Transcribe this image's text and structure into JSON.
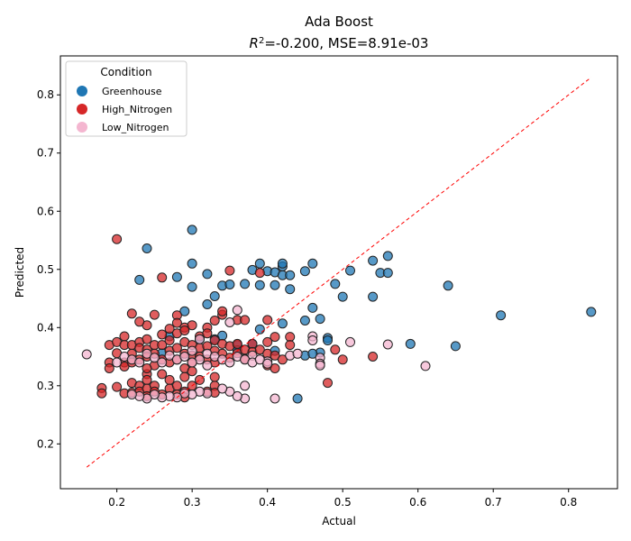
{
  "chart_data": {
    "type": "scatter",
    "title": "Ada Boost",
    "subtitle_prefix": "R",
    "subtitle_sup": "2",
    "subtitle_rest": "=-0.200, MSE=8.91e-03",
    "xlabel": "Actual",
    "ylabel": "Predicted",
    "xlim": [
      0.125,
      0.865
    ],
    "ylim": [
      0.123,
      0.867
    ],
    "xticks": [
      "0.2",
      "0.3",
      "0.4",
      "0.5",
      "0.6",
      "0.7",
      "0.8"
    ],
    "yticks": [
      "0.2",
      "0.3",
      "0.4",
      "0.5",
      "0.6",
      "0.7",
      "0.8"
    ],
    "grid": false,
    "legend": {
      "title": "Condition",
      "placement": "top-left"
    },
    "reference_line": {
      "x": [
        0.16,
        0.83
      ],
      "y": [
        0.16,
        0.83
      ],
      "color": "#ff0000",
      "style": "dashed"
    },
    "series": [
      {
        "name": "Greenhouse",
        "color": "#1f77b4",
        "points": [
          [
            0.24,
            0.536
          ],
          [
            0.3,
            0.568
          ],
          [
            0.23,
            0.482
          ],
          [
            0.28,
            0.487
          ],
          [
            0.3,
            0.51
          ],
          [
            0.3,
            0.47
          ],
          [
            0.32,
            0.492
          ],
          [
            0.33,
            0.454
          ],
          [
            0.34,
            0.472
          ],
          [
            0.35,
            0.474
          ],
          [
            0.37,
            0.475
          ],
          [
            0.38,
            0.499
          ],
          [
            0.39,
            0.51
          ],
          [
            0.39,
            0.473
          ],
          [
            0.4,
            0.497
          ],
          [
            0.41,
            0.473
          ],
          [
            0.41,
            0.495
          ],
          [
            0.42,
            0.505
          ],
          [
            0.42,
            0.51
          ],
          [
            0.42,
            0.49
          ],
          [
            0.43,
            0.49
          ],
          [
            0.43,
            0.466
          ],
          [
            0.45,
            0.497
          ],
          [
            0.46,
            0.51
          ],
          [
            0.49,
            0.475
          ],
          [
            0.5,
            0.453
          ],
          [
            0.51,
            0.498
          ],
          [
            0.54,
            0.515
          ],
          [
            0.54,
            0.453
          ],
          [
            0.55,
            0.494
          ],
          [
            0.56,
            0.494
          ],
          [
            0.56,
            0.523
          ],
          [
            0.64,
            0.472
          ],
          [
            0.71,
            0.421
          ],
          [
            0.83,
            0.427
          ],
          [
            0.59,
            0.372
          ],
          [
            0.65,
            0.368
          ],
          [
            0.46,
            0.434
          ],
          [
            0.47,
            0.415
          ],
          [
            0.45,
            0.412
          ],
          [
            0.42,
            0.407
          ],
          [
            0.48,
            0.382
          ],
          [
            0.48,
            0.378
          ],
          [
            0.47,
            0.357
          ],
          [
            0.45,
            0.352
          ],
          [
            0.44,
            0.278
          ],
          [
            0.46,
            0.355
          ],
          [
            0.29,
            0.428
          ],
          [
            0.39,
            0.397
          ],
          [
            0.34,
            0.386
          ],
          [
            0.33,
            0.38
          ],
          [
            0.36,
            0.37
          ],
          [
            0.27,
            0.385
          ],
          [
            0.31,
            0.38
          ],
          [
            0.38,
            0.372
          ],
          [
            0.41,
            0.36
          ],
          [
            0.32,
            0.44
          ],
          [
            0.36,
            0.361
          ],
          [
            0.26,
            0.356
          ]
        ]
      },
      {
        "name": "High_Nitrogen",
        "color": "#d62728",
        "points": [
          [
            0.2,
            0.552
          ],
          [
            0.26,
            0.486
          ],
          [
            0.35,
            0.498
          ],
          [
            0.39,
            0.494
          ],
          [
            0.22,
            0.424
          ],
          [
            0.25,
            0.422
          ],
          [
            0.24,
            0.404
          ],
          [
            0.23,
            0.41
          ],
          [
            0.28,
            0.421
          ],
          [
            0.29,
            0.4
          ],
          [
            0.3,
            0.404
          ],
          [
            0.32,
            0.4
          ],
          [
            0.33,
            0.412
          ],
          [
            0.34,
            0.422
          ],
          [
            0.34,
            0.428
          ],
          [
            0.36,
            0.413
          ],
          [
            0.37,
            0.413
          ],
          [
            0.4,
            0.413
          ],
          [
            0.41,
            0.384
          ],
          [
            0.43,
            0.384
          ],
          [
            0.43,
            0.37
          ],
          [
            0.49,
            0.362
          ],
          [
            0.48,
            0.305
          ],
          [
            0.54,
            0.35
          ],
          [
            0.5,
            0.345
          ],
          [
            0.19,
            0.37
          ],
          [
            0.19,
            0.34
          ],
          [
            0.19,
            0.33
          ],
          [
            0.2,
            0.375
          ],
          [
            0.2,
            0.356
          ],
          [
            0.21,
            0.385
          ],
          [
            0.21,
            0.37
          ],
          [
            0.21,
            0.34
          ],
          [
            0.21,
            0.333
          ],
          [
            0.22,
            0.37
          ],
          [
            0.22,
            0.355
          ],
          [
            0.22,
            0.34
          ],
          [
            0.23,
            0.375
          ],
          [
            0.23,
            0.365
          ],
          [
            0.23,
            0.345
          ],
          [
            0.24,
            0.38
          ],
          [
            0.24,
            0.362
          ],
          [
            0.24,
            0.35
          ],
          [
            0.24,
            0.32
          ],
          [
            0.25,
            0.37
          ],
          [
            0.25,
            0.355
          ],
          [
            0.25,
            0.335
          ],
          [
            0.26,
            0.388
          ],
          [
            0.26,
            0.37
          ],
          [
            0.26,
            0.345
          ],
          [
            0.27,
            0.398
          ],
          [
            0.27,
            0.378
          ],
          [
            0.27,
            0.36
          ],
          [
            0.27,
            0.34
          ],
          [
            0.28,
            0.408
          ],
          [
            0.28,
            0.39
          ],
          [
            0.28,
            0.365
          ],
          [
            0.28,
            0.345
          ],
          [
            0.29,
            0.395
          ],
          [
            0.29,
            0.375
          ],
          [
            0.29,
            0.355
          ],
          [
            0.29,
            0.33
          ],
          [
            0.3,
            0.37
          ],
          [
            0.3,
            0.352
          ],
          [
            0.3,
            0.34
          ],
          [
            0.31,
            0.385
          ],
          [
            0.31,
            0.365
          ],
          [
            0.31,
            0.35
          ],
          [
            0.32,
            0.39
          ],
          [
            0.32,
            0.368
          ],
          [
            0.32,
            0.345
          ],
          [
            0.33,
            0.378
          ],
          [
            0.33,
            0.36
          ],
          [
            0.33,
            0.34
          ],
          [
            0.34,
            0.372
          ],
          [
            0.34,
            0.355
          ],
          [
            0.35,
            0.368
          ],
          [
            0.35,
            0.348
          ],
          [
            0.36,
            0.372
          ],
          [
            0.36,
            0.356
          ],
          [
            0.37,
            0.362
          ],
          [
            0.37,
            0.346
          ],
          [
            0.38,
            0.372
          ],
          [
            0.38,
            0.358
          ],
          [
            0.39,
            0.362
          ],
          [
            0.4,
            0.375
          ],
          [
            0.4,
            0.355
          ],
          [
            0.4,
            0.335
          ],
          [
            0.41,
            0.352
          ],
          [
            0.41,
            0.33
          ],
          [
            0.42,
            0.345
          ],
          [
            0.18,
            0.296
          ],
          [
            0.18,
            0.287
          ],
          [
            0.2,
            0.298
          ],
          [
            0.21,
            0.287
          ],
          [
            0.22,
            0.305
          ],
          [
            0.22,
            0.288
          ],
          [
            0.23,
            0.3
          ],
          [
            0.23,
            0.29
          ],
          [
            0.24,
            0.31
          ],
          [
            0.24,
            0.295
          ],
          [
            0.24,
            0.282
          ],
          [
            0.25,
            0.3
          ],
          [
            0.25,
            0.29
          ],
          [
            0.26,
            0.285
          ],
          [
            0.27,
            0.31
          ],
          [
            0.27,
            0.295
          ],
          [
            0.28,
            0.3
          ],
          [
            0.28,
            0.285
          ],
          [
            0.29,
            0.315
          ],
          [
            0.29,
            0.29
          ],
          [
            0.29,
            0.28
          ],
          [
            0.3,
            0.3
          ],
          [
            0.31,
            0.31
          ],
          [
            0.32,
            0.29
          ],
          [
            0.33,
            0.3
          ],
          [
            0.33,
            0.315
          ],
          [
            0.33,
            0.288
          ],
          [
            0.3,
            0.325
          ],
          [
            0.24,
            0.33
          ],
          [
            0.26,
            0.32
          ]
        ]
      },
      {
        "name": "Low_Nitrogen",
        "color": "#f4b6d0",
        "points": [
          [
            0.16,
            0.354
          ],
          [
            0.36,
            0.43
          ],
          [
            0.35,
            0.409
          ],
          [
            0.38,
            0.352
          ],
          [
            0.4,
            0.342
          ],
          [
            0.43,
            0.352
          ],
          [
            0.44,
            0.355
          ],
          [
            0.46,
            0.385
          ],
          [
            0.46,
            0.378
          ],
          [
            0.47,
            0.348
          ],
          [
            0.47,
            0.338
          ],
          [
            0.47,
            0.335
          ],
          [
            0.51,
            0.375
          ],
          [
            0.56,
            0.371
          ],
          [
            0.61,
            0.334
          ],
          [
            0.41,
            0.278
          ],
          [
            0.37,
            0.278
          ],
          [
            0.37,
            0.3
          ],
          [
            0.36,
            0.282
          ],
          [
            0.35,
            0.29
          ],
          [
            0.34,
            0.295
          ],
          [
            0.32,
            0.287
          ],
          [
            0.31,
            0.29
          ],
          [
            0.3,
            0.285
          ],
          [
            0.29,
            0.287
          ],
          [
            0.28,
            0.28
          ],
          [
            0.27,
            0.282
          ],
          [
            0.26,
            0.28
          ],
          [
            0.25,
            0.285
          ],
          [
            0.24,
            0.278
          ],
          [
            0.23,
            0.282
          ],
          [
            0.22,
            0.285
          ],
          [
            0.2,
            0.34
          ],
          [
            0.21,
            0.35
          ],
          [
            0.22,
            0.345
          ],
          [
            0.23,
            0.34
          ],
          [
            0.24,
            0.355
          ],
          [
            0.25,
            0.348
          ],
          [
            0.26,
            0.34
          ],
          [
            0.27,
            0.352
          ],
          [
            0.28,
            0.345
          ],
          [
            0.29,
            0.35
          ],
          [
            0.3,
            0.36
          ],
          [
            0.31,
            0.345
          ],
          [
            0.32,
            0.355
          ],
          [
            0.33,
            0.35
          ],
          [
            0.34,
            0.345
          ],
          [
            0.35,
            0.34
          ],
          [
            0.36,
            0.35
          ],
          [
            0.37,
            0.345
          ],
          [
            0.38,
            0.34
          ],
          [
            0.39,
            0.345
          ],
          [
            0.4,
            0.338
          ],
          [
            0.3,
            0.34
          ],
          [
            0.31,
            0.38
          ],
          [
            0.32,
            0.335
          ]
        ]
      }
    ]
  }
}
